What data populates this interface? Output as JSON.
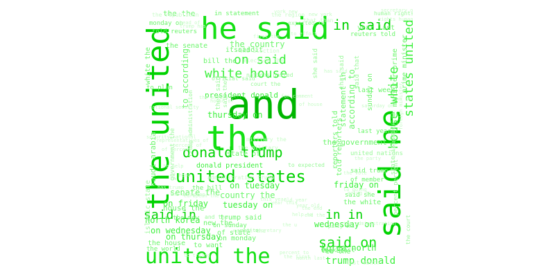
{
  "palette": [
    "#00b600",
    "#00d200",
    "#13e013",
    "#3cf03c",
    "#6bf56b",
    "#9af89a",
    "#c8fbc8"
  ],
  "words": [
    {
      "text": "and",
      "color": "#00b600",
      "orientation": "horizontal"
    },
    {
      "text": "the",
      "color": "#13e013",
      "orientation": "horizontal"
    },
    {
      "text": "he said",
      "color": "#13e013",
      "orientation": "horizontal"
    },
    {
      "text": "the united",
      "color": "#00d200",
      "orientation": "vertical"
    },
    {
      "text": "said he",
      "color": "#00d200",
      "orientation": "vertical"
    },
    {
      "text": "united the",
      "color": "#13e013",
      "orientation": "horizontal"
    },
    {
      "text": "united states",
      "color": "#00d200",
      "orientation": "horizontal"
    },
    {
      "text": "donald trump",
      "color": "#00d200",
      "orientation": "horizontal"
    },
    {
      "text": "white house",
      "color": "#3cf03c",
      "orientation": "horizontal"
    },
    {
      "text": "on said",
      "color": "#3cf03c",
      "orientation": "horizontal"
    },
    {
      "text": "in said",
      "color": "#00d200",
      "orientation": "horizontal"
    },
    {
      "text": "states united",
      "color": "#3cf03c",
      "orientation": "vertical"
    },
    {
      "text": "house white",
      "color": "#3cf03c",
      "orientation": "vertical"
    },
    {
      "text": "said in",
      "color": "#00d200",
      "orientation": "horizontal"
    },
    {
      "text": "in in",
      "color": "#00d200",
      "orientation": "horizontal"
    },
    {
      "text": "said on",
      "color": "#13e013",
      "orientation": "horizontal"
    },
    {
      "text": "trump donald",
      "color": "#3cf03c",
      "orientation": "horizontal"
    },
    {
      "text": "president donald",
      "color": "#3cf03c",
      "orientation": "horizontal"
    },
    {
      "text": "donald president",
      "color": "#3cf03c",
      "orientation": "horizontal"
    },
    {
      "text": "thursday on",
      "color": "#3cf03c",
      "orientation": "horizontal"
    },
    {
      "text": "on tuesday",
      "color": "#3cf03c",
      "orientation": "horizontal"
    },
    {
      "text": "tuesday on",
      "color": "#3cf03c",
      "orientation": "horizontal"
    },
    {
      "text": "on friday",
      "color": "#3cf03c",
      "orientation": "horizontal"
    },
    {
      "text": "friday on",
      "color": "#3cf03c",
      "orientation": "horizontal"
    },
    {
      "text": "on wednesday",
      "color": "#3cf03c",
      "orientation": "horizontal"
    },
    {
      "text": "wednesday on",
      "color": "#3cf03c",
      "orientation": "horizontal"
    },
    {
      "text": "on thursday",
      "color": "#3cf03c",
      "orientation": "horizontal"
    },
    {
      "text": "north korea",
      "color": "#3cf03c",
      "orientation": "horizontal"
    },
    {
      "text": "korea north",
      "color": "#3cf03c",
      "orientation": "horizontal"
    },
    {
      "text": "the country",
      "color": "#6bf56b",
      "orientation": "horizontal"
    },
    {
      "text": "country the",
      "color": "#6bf56b",
      "orientation": "horizontal"
    },
    {
      "text": "senate the",
      "color": "#6bf56b",
      "orientation": "horizontal"
    },
    {
      "text": "the senate",
      "color": "#6bf56b",
      "orientation": "horizontal"
    },
    {
      "text": "in statement",
      "color": "#6bf56b",
      "orientation": "horizontal"
    },
    {
      "text": "monday on",
      "color": "#6bf56b",
      "orientation": "horizontal"
    },
    {
      "text": "on monday",
      "color": "#6bf56b",
      "orientation": "horizontal"
    },
    {
      "text": "told reuters",
      "color": "#6bf56b",
      "orientation": "horizontal"
    },
    {
      "text": "reuters told",
      "color": "#6bf56b",
      "orientation": "horizontal"
    },
    {
      "text": "the the",
      "color": "#6bf56b",
      "orientation": "horizontal"
    },
    {
      "text": "the white",
      "color": "#6bf56b",
      "orientation": "horizontal"
    },
    {
      "text": "white the",
      "color": "#6bf56b",
      "orientation": "vertical"
    },
    {
      "text": "year last",
      "color": "#6bf56b",
      "orientation": "horizontal"
    },
    {
      "text": "last year",
      "color": "#6bf56b",
      "orientation": "horizontal"
    },
    {
      "text": "week last",
      "color": "#6bf56b",
      "orientation": "horizontal"
    },
    {
      "text": "last week",
      "color": "#6bf56b",
      "orientation": "horizontal"
    },
    {
      "text": "the government",
      "color": "#6bf56b",
      "orientation": "horizontal"
    },
    {
      "text": "minister prime",
      "color": "#6bf56b",
      "orientation": "vertical"
    },
    {
      "text": "prime minister",
      "color": "#6bf56b",
      "orientation": "vertical"
    },
    {
      "text": "state of",
      "color": "#6bf56b",
      "orientation": "horizontal"
    },
    {
      "text": "of state",
      "color": "#6bf56b",
      "orientation": "horizontal"
    },
    {
      "text": "house the",
      "color": "#6bf56b",
      "orientation": "horizontal"
    },
    {
      "text": "the house",
      "color": "#6bf56b",
      "orientation": "horizontal"
    },
    {
      "text": "the world",
      "color": "#6bf56b",
      "orientation": "horizontal"
    },
    {
      "text": "to want",
      "color": "#6bf56b",
      "orientation": "horizontal"
    },
    {
      "text": "said it",
      "color": "#6bf56b",
      "orientation": "horizontal"
    },
    {
      "text": "it said",
      "color": "#6bf56b",
      "orientation": "horizontal"
    },
    {
      "text": "said she",
      "color": "#6bf56b",
      "orientation": "horizontal"
    },
    {
      "text": "said trump",
      "color": "#6bf56b",
      "orientation": "horizontal"
    },
    {
      "text": "trump said",
      "color": "#6bf56b",
      "orientation": "horizontal"
    },
    {
      "text": "the new",
      "color": "#6bf56b",
      "orientation": "horizontal"
    },
    {
      "text": "new the",
      "color": "#6bf56b",
      "orientation": "horizontal"
    },
    {
      "text": "the bill",
      "color": "#6bf56b",
      "orientation": "horizontal"
    },
    {
      "text": "bill the",
      "color": "#6bf56b",
      "orientation": "horizontal"
    },
    {
      "text": "eu the",
      "color": "#6bf56b",
      "orientation": "horizontal"
    },
    {
      "text": "the eu",
      "color": "#6bf56b",
      "orientation": "horizontal"
    },
    {
      "text": "to plan",
      "color": "#6bf56b",
      "orientation": "horizontal"
    },
    {
      "text": "of member",
      "color": "#6bf56b",
      "orientation": "horizontal"
    },
    {
      "text": "on sunday",
      "color": "#6bf56b",
      "orientation": "horizontal"
    },
    {
      "text": "sunday on",
      "color": "#6bf56b",
      "orientation": "vertical"
    },
    {
      "text": "according to",
      "color": "#6bf56b",
      "orientation": "vertical"
    },
    {
      "text": "to according",
      "color": "#6bf56b",
      "orientation": "vertical"
    },
    {
      "text": "statement in",
      "color": "#6bf56b",
      "orientation": "vertical"
    },
    {
      "text": "reporters told",
      "color": "#6bf56b",
      "orientation": "vertical"
    },
    {
      "text": "told reporters",
      "color": "#6bf56b",
      "orientation": "vertical"
    },
    {
      "text": "saudi arabia",
      "color": "#6bf56b",
      "orientation": "vertical"
    },
    {
      "text": "islamic state",
      "color": "#9af89a",
      "orientation": "vertical"
    },
    {
      "text": "state islamic",
      "color": "#9af89a",
      "orientation": "vertical"
    },
    {
      "text": "percent percent",
      "color": "#9af89a",
      "orientation": "vertical"
    },
    {
      "text": "said that",
      "color": "#9af89a",
      "orientation": "vertical"
    },
    {
      "text": "that said",
      "color": "#9af89a",
      "orientation": "vertical"
    },
    {
      "text": "she said",
      "color": "#9af89a",
      "orientation": "vertical"
    },
    {
      "text": "they said",
      "color": "#9af89a",
      "orientation": "vertical"
    },
    {
      "text": "said they",
      "color": "#9af89a",
      "orientation": "vertical"
    },
    {
      "text": "government the",
      "color": "#9af89a",
      "orientation": "vertical"
    },
    {
      "text": "trump administration",
      "color": "#9af89a",
      "orientation": "vertical"
    },
    {
      "text": "the court",
      "color": "#9af89a",
      "orientation": "vertical"
    },
    {
      "text": "court the",
      "color": "#9af89a",
      "orientation": "horizontal"
    },
    {
      "text": "and the",
      "color": "#9af89a",
      "orientation": "horizontal"
    },
    {
      "text": "to expected",
      "color": "#9af89a",
      "orientation": "horizontal"
    },
    {
      "text": "expected to",
      "color": "#9af89a",
      "orientation": "horizontal"
    },
    {
      "text": "united nations",
      "color": "#9af89a",
      "orientation": "horizontal"
    },
    {
      "text": "nations united",
      "color": "#9af89a",
      "orientation": "horizontal"
    },
    {
      "text": "official said",
      "color": "#9af89a",
      "orientation": "horizontal"
    },
    {
      "text": "the region",
      "color": "#c8fbc8",
      "orientation": "horizontal"
    },
    {
      "text": "region the",
      "color": "#c8fbc8",
      "orientation": "horizontal"
    },
    {
      "text": "human rights",
      "color": "#9af89a",
      "orientation": "horizontal"
    },
    {
      "text": "rights human",
      "color": "#c8fbc8",
      "orientation": "horizontal"
    },
    {
      "text": "the republican",
      "color": "#c8fbc8",
      "orientation": "horizontal"
    },
    {
      "text": "head of",
      "color": "#c8fbc8",
      "orientation": "horizontal"
    },
    {
      "text": "trump has",
      "color": "#c8fbc8",
      "orientation": "horizontal"
    },
    {
      "text": "has trump",
      "color": "#c8fbc8",
      "orientation": "horizontal"
    },
    {
      "text": "that than",
      "color": "#c8fbc8",
      "orientation": "horizontal"
    },
    {
      "text": "the election",
      "color": "#c8fbc8",
      "orientation": "horizontal"
    },
    {
      "text": "election the",
      "color": "#c8fbc8",
      "orientation": "horizontal"
    },
    {
      "text": "the military",
      "color": "#c8fbc8",
      "orientation": "horizontal"
    },
    {
      "text": "military the",
      "color": "#c8fbc8",
      "orientation": "horizontal"
    },
    {
      "text": "administration trump",
      "color": "#c8fbc8",
      "orientation": "horizontal"
    },
    {
      "text": "of head",
      "color": "#c8fbc8",
      "orientation": "horizontal"
    },
    {
      "text": "of percent",
      "color": "#c8fbc8",
      "orientation": "horizontal"
    },
    {
      "text": "percent of",
      "color": "#c8fbc8",
      "orientation": "horizontal"
    },
    {
      "text": "the european",
      "color": "#c8fbc8",
      "orientation": "horizontal"
    },
    {
      "text": "european the",
      "color": "#c8fbc8",
      "orientation": "horizontal"
    },
    {
      "text": "this year",
      "color": "#c8fbc8",
      "orientation": "horizontal"
    },
    {
      "text": "year this",
      "color": "#c8fbc8",
      "orientation": "horizontal"
    },
    {
      "text": "help to",
      "color": "#c8fbc8",
      "orientation": "horizontal"
    },
    {
      "text": "going to",
      "color": "#c8fbc8",
      "orientation": "horizontal"
    },
    {
      "text": "to going",
      "color": "#c8fbc8",
      "orientation": "horizontal"
    },
    {
      "text": "the party",
      "color": "#c8fbc8",
      "orientation": "horizontal"
    },
    {
      "text": "party the",
      "color": "#9af89a",
      "orientation": "horizontal"
    },
    {
      "text": "old year",
      "color": "#c8fbc8",
      "orientation": "horizontal"
    },
    {
      "text": "year old",
      "color": "#c8fbc8",
      "orientation": "horizontal"
    },
    {
      "text": "month last",
      "color": "#c8fbc8",
      "orientation": "horizontal"
    },
    {
      "text": "last month",
      "color": "#c8fbc8",
      "orientation": "horizontal"
    },
    {
      "text": "the end",
      "color": "#c8fbc8",
      "orientation": "horizontal"
    },
    {
      "text": "end the",
      "color": "#c8fbc8",
      "orientation": "horizontal"
    },
    {
      "text": "foreign minister",
      "color": "#c8fbc8",
      "orientation": "vertical"
    },
    {
      "text": "minister foreign",
      "color": "#c8fbc8",
      "orientation": "vertical"
    },
    {
      "text": "new york",
      "color": "#c8fbc8",
      "orientation": "horizontal"
    },
    {
      "text": "york new",
      "color": "#c8fbc8",
      "orientation": "horizontal"
    },
    {
      "text": "the vote",
      "color": "#c8fbc8",
      "orientation": "horizontal"
    },
    {
      "text": "on saturday",
      "color": "#c8fbc8",
      "orientation": "horizontal"
    },
    {
      "text": "saturday on",
      "color": "#c8fbc8",
      "orientation": "horizontal"
    },
    {
      "text": "has said",
      "color": "#c8fbc8",
      "orientation": "horizontal"
    },
    {
      "text": "the attack",
      "color": "#c8fbc8",
      "orientation": "horizontal"
    },
    {
      "text": "house of",
      "color": "#c8fbc8",
      "orientation": "horizontal"
    },
    {
      "text": "of house",
      "color": "#c8fbc8",
      "orientation": "horizontal"
    },
    {
      "text": "of secretary",
      "color": "#c8fbc8",
      "orientation": "horizontal"
    },
    {
      "text": "secretary of",
      "color": "#c8fbc8",
      "orientation": "horizontal"
    },
    {
      "text": "representatives of",
      "color": "#c8fbc8",
      "orientation": "horizontal"
    },
    {
      "text": "security national",
      "color": "#c8fbc8",
      "orientation": "horizontal"
    },
    {
      "text": "national security",
      "color": "#c8fbc8",
      "orientation": "horizontal"
    },
    {
      "text": "to effort",
      "color": "#c8fbc8",
      "orientation": "horizontal"
    },
    {
      "text": "for comment",
      "color": "#c8fbc8",
      "orientation": "horizontal"
    },
    {
      "text": "the administration",
      "color": "#c8fbc8",
      "orientation": "horizontal"
    },
    {
      "text": "the u",
      "color": "#c8fbc8",
      "orientation": "horizontal"
    },
    {
      "text": "to trying",
      "color": "#c8fbc8",
      "orientation": "horizontal"
    },
    {
      "text": "want to",
      "color": "#9af89a",
      "orientation": "horizontal"
    },
    {
      "text": "to help",
      "color": "#c8fbc8",
      "orientation": "horizontal"
    },
    {
      "text": "percent to",
      "color": "#c8fbc8",
      "orientation": "horizontal"
    },
    {
      "text": "the first",
      "color": "#c8fbc8",
      "orientation": "horizontal"
    },
    {
      "text": "first the",
      "color": "#c8fbc8",
      "orientation": "horizontal"
    }
  ]
}
